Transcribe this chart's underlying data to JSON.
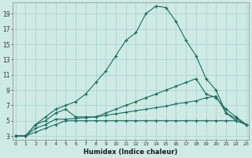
{
  "xlabel": "Humidex (Indice chaleur)",
  "bg_color": "#ceeae4",
  "line_color": "#1a6b5e",
  "grid_color": "#b0d4ce",
  "x_ticks": [
    0,
    1,
    2,
    3,
    4,
    5,
    6,
    7,
    8,
    9,
    10,
    11,
    12,
    13,
    14,
    15,
    16,
    17,
    18,
    19,
    20,
    21,
    22,
    23
  ],
  "y_ticks": [
    3,
    5,
    7,
    9,
    11,
    13,
    15,
    17,
    19
  ],
  "ylim": [
    2.5,
    20.5
  ],
  "xlim": [
    -0.3,
    23.3
  ],
  "curve1_x": [
    0,
    1,
    2,
    3,
    4,
    5,
    6,
    7,
    8,
    9,
    10,
    11,
    12,
    13,
    14,
    15,
    16,
    17,
    18,
    19,
    20,
    21,
    22,
    23
  ],
  "curve1_y": [
    3,
    3,
    4.5,
    5.5,
    6.5,
    7,
    7.5,
    8.5,
    10,
    11.5,
    13.5,
    15.5,
    16.5,
    19,
    20,
    19.8,
    18,
    15.5,
    13.5,
    10.5,
    9,
    6,
    5,
    4.5
  ],
  "curve2_x": [
    0,
    1,
    2,
    3,
    4,
    5,
    6,
    7,
    8,
    9,
    10,
    11,
    12,
    13,
    14,
    15,
    16,
    17,
    18,
    19,
    20,
    21,
    22,
    23
  ],
  "curve2_y": [
    3,
    3,
    4.5,
    5,
    6,
    6.5,
    5.5,
    5.5,
    5.5,
    6,
    6.5,
    7,
    7.5,
    8,
    8.5,
    9,
    9.5,
    10,
    10.5,
    8.5,
    8,
    6.5,
    5.5,
    4.5
  ],
  "curve3_x": [
    0,
    1,
    2,
    3,
    4,
    5,
    6,
    7,
    8,
    9,
    10,
    11,
    12,
    13,
    14,
    15,
    16,
    17,
    18,
    19,
    20,
    21,
    22,
    23
  ],
  "curve3_y": [
    3,
    3,
    4,
    4.5,
    5.2,
    5.2,
    5.3,
    5.4,
    5.5,
    5.7,
    5.9,
    6.1,
    6.3,
    6.5,
    6.7,
    6.9,
    7.2,
    7.4,
    7.6,
    8,
    8.2,
    6,
    5.3,
    4.5
  ],
  "curve4_x": [
    0,
    1,
    2,
    3,
    4,
    5,
    6,
    7,
    8,
    9,
    10,
    11,
    12,
    13,
    14,
    15,
    16,
    17,
    18,
    19,
    20,
    21,
    22,
    23
  ],
  "curve4_y": [
    3,
    3,
    3.5,
    4,
    4.5,
    5,
    5,
    5,
    5,
    5,
    5,
    5,
    5,
    5,
    5,
    5,
    5,
    5,
    5,
    5,
    5,
    5,
    5,
    4.5
  ]
}
